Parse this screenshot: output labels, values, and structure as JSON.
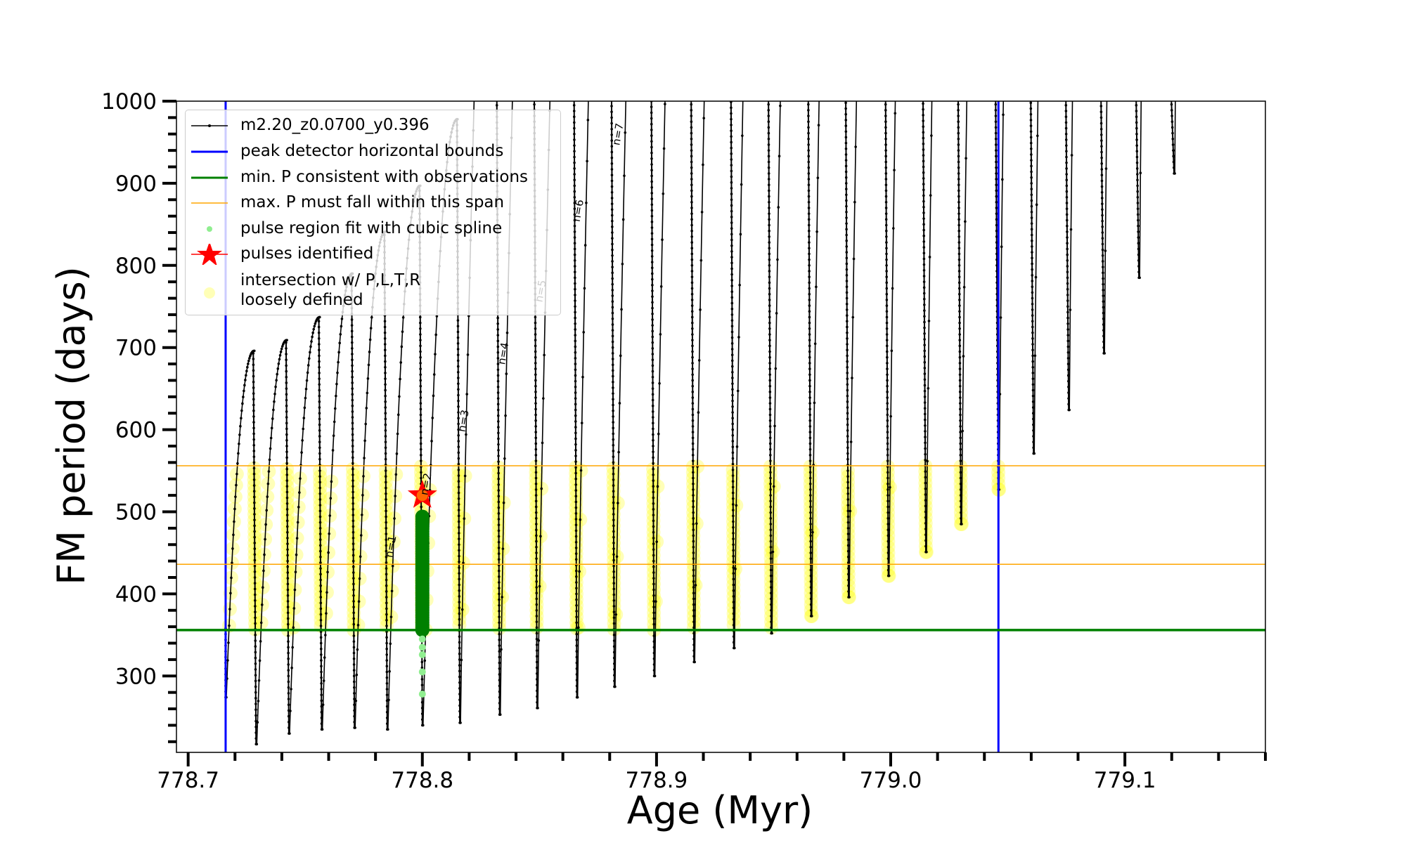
{
  "chart_data": {
    "type": "line",
    "title": "",
    "xlabel": "Age (Myr)",
    "ylabel": "FM period (days)",
    "xlim": [
      778.695,
      779.16
    ],
    "ylim": [
      207,
      1000
    ],
    "x_ticks": [
      "778.7",
      "778.8",
      "778.9",
      "779.0",
      "779.1"
    ],
    "y_ticks": [
      "300",
      "400",
      "500",
      "600",
      "700",
      "800",
      "900",
      "1000"
    ],
    "grid": false,
    "legend_position": "top-left",
    "colors": {
      "track": "#000000",
      "bounds": "#0000ff",
      "min_p": "#008000",
      "max_p_span": "#ffa500",
      "spline": "#90ee90",
      "spline_dense": "#008000",
      "pulse": "#ff0000",
      "intersection": "#ffff00"
    },
    "legend": [
      {
        "label": "m2.20_z0.0700_y0.396"
      },
      {
        "label": "peak detector horizontal bounds"
      },
      {
        "label": "min. P consistent with observations"
      },
      {
        "label": "max. P must fall within this span"
      },
      {
        "label": "pulse region fit with cubic spline"
      },
      {
        "label": "pulses identified"
      },
      {
        "label": "intersection w/ P,L,T,R\nloosely defined"
      }
    ],
    "track_name": "m2.20_z0.0700_y0.396",
    "pulses": [
      {
        "age": 778.716,
        "p_min": 274,
        "p_peak_next": 696
      },
      {
        "age": 778.729,
        "p_min": 217,
        "p_peak_next": 709
      },
      {
        "age": 778.743,
        "p_min": 230,
        "p_peak_next": 737
      },
      {
        "age": 778.757,
        "p_min": 235,
        "p_peak_next": 790
      },
      {
        "age": 778.771,
        "p_min": 237,
        "p_peak_next": 841
      },
      {
        "age": 778.785,
        "p_min": 235,
        "p_peak_next": 897
      },
      {
        "age": 778.8,
        "p_min": 240,
        "p_peak_next": 978
      },
      {
        "age": 778.816,
        "p_min": 243,
        "p_peak_next": null
      },
      {
        "age": 778.833,
        "p_min": 253,
        "p_peak_next": null
      },
      {
        "age": 778.849,
        "p_min": 261,
        "p_peak_next": null
      },
      {
        "age": 778.866,
        "p_min": 274,
        "p_peak_next": null
      },
      {
        "age": 778.882,
        "p_min": 287,
        "p_peak_next": null
      },
      {
        "age": 778.899,
        "p_min": 300,
        "p_peak_next": null
      },
      {
        "age": 778.916,
        "p_min": 317,
        "p_peak_next": null
      },
      {
        "age": 778.933,
        "p_min": 334,
        "p_peak_next": null
      },
      {
        "age": 778.949,
        "p_min": 352,
        "p_peak_next": null
      },
      {
        "age": 778.966,
        "p_min": 373,
        "p_peak_next": null
      },
      {
        "age": 778.982,
        "p_min": 396,
        "p_peak_next": null
      },
      {
        "age": 778.999,
        "p_min": 422,
        "p_peak_next": null
      },
      {
        "age": 779.015,
        "p_min": 451,
        "p_peak_next": null
      },
      {
        "age": 779.03,
        "p_min": 485,
        "p_peak_next": null
      },
      {
        "age": 779.046,
        "p_min": 527,
        "p_peak_next": null
      },
      {
        "age": 779.061,
        "p_min": 571,
        "p_peak_next": null
      },
      {
        "age": 779.076,
        "p_min": 624,
        "p_peak_next": null
      },
      {
        "age": 779.091,
        "p_min": 693,
        "p_peak_next": null
      },
      {
        "age": 779.106,
        "p_min": 785,
        "p_peak_next": null
      },
      {
        "age": 779.121,
        "p_min": 912,
        "p_peak_next": null
      }
    ],
    "peak_detector_bounds": [
      778.716,
      779.046
    ],
    "min_p_observed": 356,
    "max_p_span": [
      436,
      556
    ],
    "spline_fit": {
      "age": 778.8,
      "dense_range": [
        356,
        495
      ],
      "sparse_points": [
        345,
        335,
        326,
        305,
        278
      ]
    },
    "pulse_identified": {
      "age": 778.8,
      "p": 520
    },
    "n_labels": [
      {
        "text": "n=1",
        "age": 778.788,
        "p": 457
      },
      {
        "text": "n=2",
        "age": 778.803,
        "p": 533
      },
      {
        "text": "n=3",
        "age": 778.819,
        "p": 610
      },
      {
        "text": "n=4",
        "age": 778.836,
        "p": 692
      },
      {
        "text": "n=5",
        "age": 778.852,
        "p": 768
      },
      {
        "text": "n=6",
        "age": 778.868,
        "p": 866
      },
      {
        "text": "n=7",
        "age": 778.885,
        "p": 959
      }
    ]
  }
}
